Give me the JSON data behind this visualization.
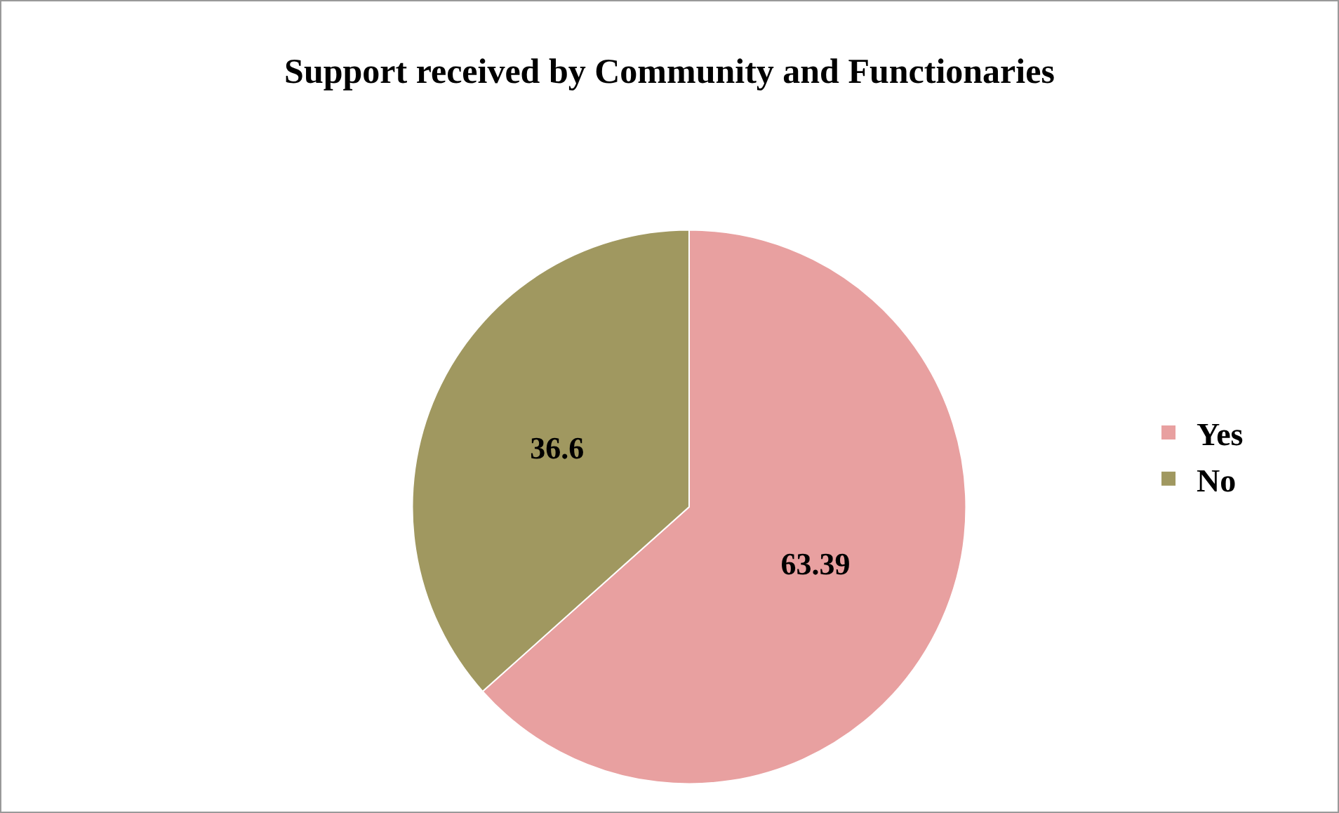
{
  "chart_data": {
    "type": "pie",
    "title": "Support received by Community and Functionaries",
    "categories": [
      "Yes",
      "No"
    ],
    "values": [
      63.39,
      36.6
    ],
    "colors": [
      "#e8a0a0",
      "#a09860"
    ],
    "data_labels": true,
    "legend": "right"
  }
}
